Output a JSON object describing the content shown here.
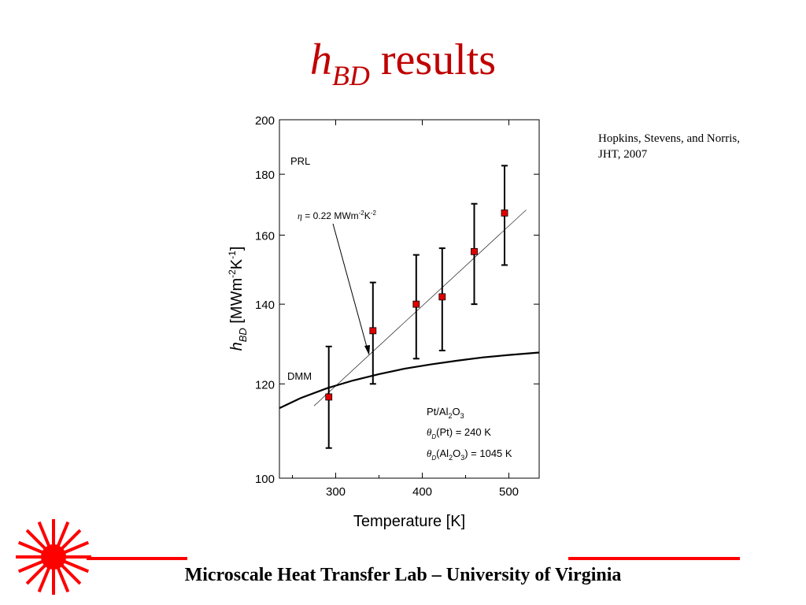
{
  "slide": {
    "title_symbol": "h",
    "title_subscript": "BD",
    "title_rest": " results",
    "citation_line1": "Hopkins, Stevens, and Norris,",
    "citation_line2": "JHT, 2007",
    "footer": "Microscale Heat Transfer Lab – University of Virginia",
    "logo_icon": "sunburst-logo-icon",
    "colors": {
      "title": "#c00000",
      "accent_red": "#ff0000",
      "marker": "#e00000"
    }
  },
  "chart_data": {
    "type": "scatter",
    "xlabel": "Temperature [K]",
    "ylabel_symbol": "h",
    "ylabel_subscript": "BD",
    "ylabel_units": "[MWm-2K-1]",
    "xlim": [
      235,
      535
    ],
    "ylim": [
      100,
      200
    ],
    "y_scale": "log",
    "grid": false,
    "x_ticks": [
      300,
      400,
      500
    ],
    "y_ticks": [
      100,
      120,
      140,
      160,
      180,
      200
    ],
    "series": [
      {
        "name": "PRL",
        "kind": "scatter-errorbar",
        "x": [
          292,
          343,
          393,
          423,
          460,
          495
        ],
        "y": [
          117,
          133,
          140,
          142,
          155,
          167
        ],
        "yerr_low": [
          106,
          120,
          126,
          128,
          140,
          151
        ],
        "yerr_high": [
          129,
          146,
          154,
          156,
          170,
          183
        ]
      },
      {
        "name": "DMM",
        "kind": "curve",
        "x": [
          235,
          260,
          290,
          320,
          350,
          380,
          410,
          440,
          470,
          500,
          535
        ],
        "y": [
          114.5,
          116.8,
          119.0,
          120.8,
          122.3,
          123.6,
          124.6,
          125.5,
          126.3,
          126.9,
          127.5
        ]
      },
      {
        "name": "fit",
        "kind": "line",
        "x": [
          275,
          520
        ],
        "y": [
          115,
          168
        ]
      }
    ],
    "annotations": {
      "prl": "PRL",
      "dmm": "DMM",
      "eta": "η = 0.22 MWm-2K-2",
      "material": "Pt/Al2O3",
      "theta_pt": "θD(Pt) = 240 K",
      "theta_al": "θD(Al2O3) = 1045 K"
    }
  }
}
